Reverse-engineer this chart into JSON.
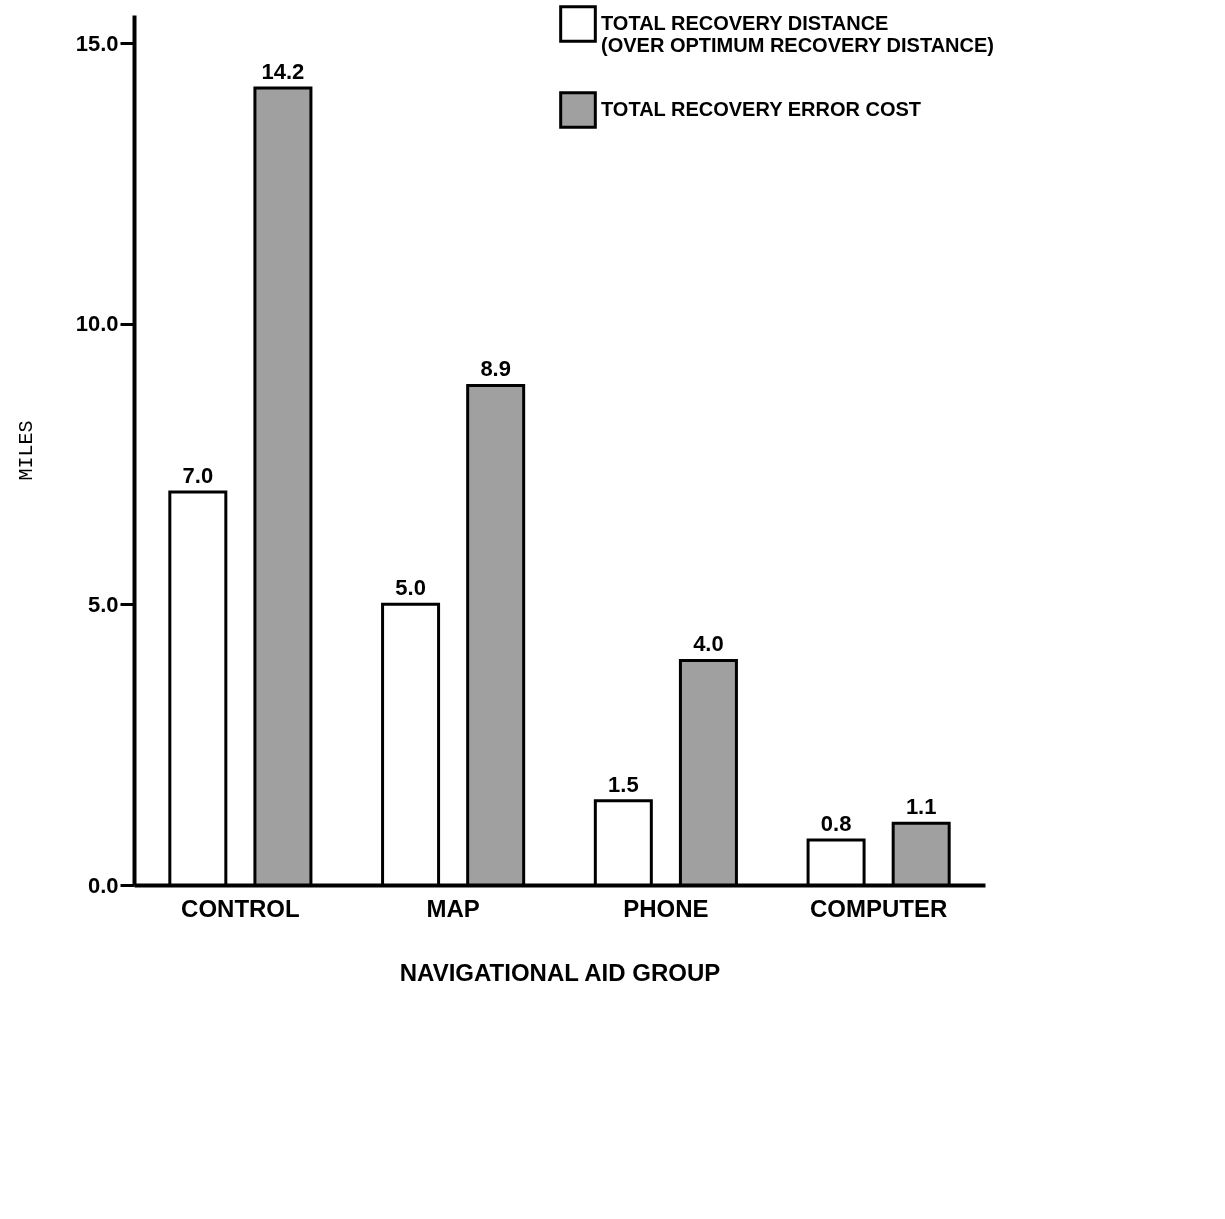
{
  "chart_data": {
    "type": "bar",
    "xlabel": "NAVIGATIONAL AID GROUP",
    "ylabel": "MILES",
    "categories": [
      "CONTROL",
      "MAP",
      "PHONE",
      "COMPUTER"
    ],
    "series": [
      {
        "name": "TOTAL RECOVERY DISTANCE (OVER OPTIMUM RECOVERY DISTANCE)",
        "color": "#ffffff",
        "values": [
          7.0,
          5.0,
          1.5,
          0.8
        ],
        "value_labels": [
          "7.0",
          "5.0",
          "1.5",
          "0.8"
        ]
      },
      {
        "name": "TOTAL RECOVERY ERROR COST",
        "color": "#a0a0a0",
        "values": [
          14.2,
          8.9,
          4.0,
          1.1
        ],
        "value_labels": [
          "14.2",
          "8.9",
          "4.0",
          "1.1"
        ]
      }
    ],
    "ylim": [
      0,
      15.5
    ],
    "yticks": [
      {
        "value": 0,
        "label": "0.0"
      },
      {
        "value": 5,
        "label": "5.0"
      },
      {
        "value": 10,
        "label": "10.0"
      },
      {
        "value": 15,
        "label": "15.0"
      }
    ],
    "grid": false,
    "legend": "top right"
  }
}
